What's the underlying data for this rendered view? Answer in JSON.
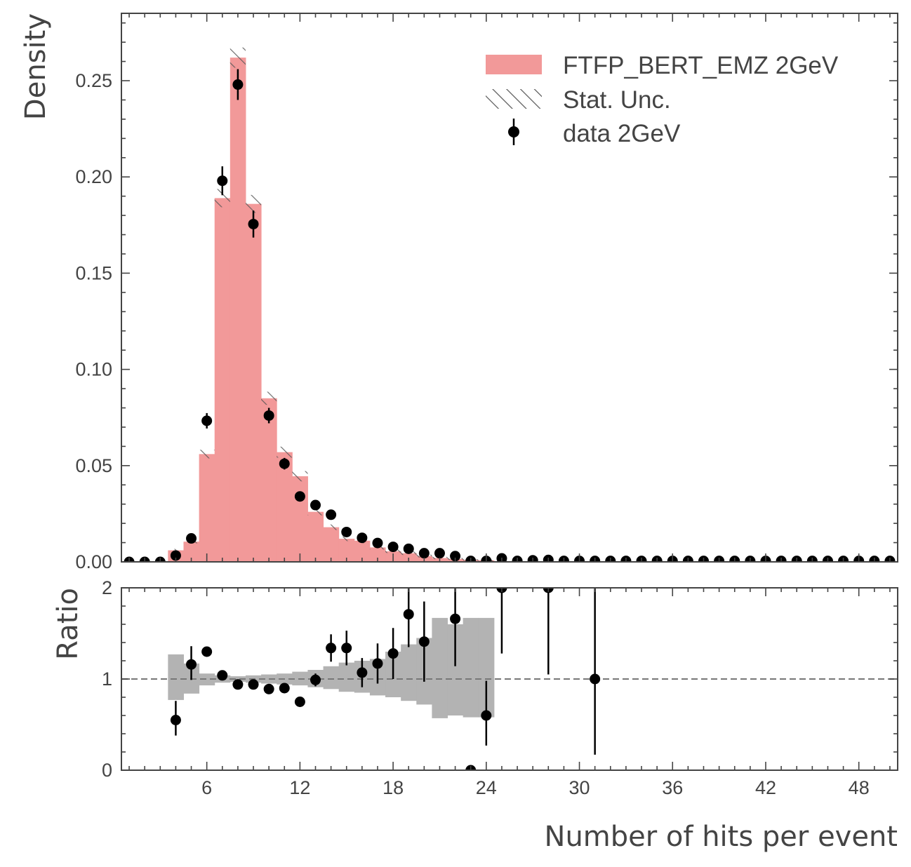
{
  "chart_data": [
    {
      "panel": "main",
      "type": "histogram",
      "ylabel": "Density",
      "xlim": [
        0.5,
        50.5
      ],
      "ylim": [
        0,
        0.285
      ],
      "yticks": [
        "0.00",
        "0.05",
        "0.10",
        "0.15",
        "0.20",
        "0.25"
      ],
      "series": [
        {
          "name": "FTFP_BERT_EMZ 2GeV",
          "kind": "step-filled",
          "color": "#f29999",
          "bin_edges": [
            0.5,
            1.5,
            2.5,
            3.5,
            4.5,
            5.5,
            6.5,
            7.5,
            8.5,
            9.5,
            10.5,
            11.5,
            12.5,
            13.5,
            14.5,
            15.5,
            16.5,
            17.5,
            18.5,
            19.5,
            20.5,
            21.5,
            22.5,
            23.5,
            24.5,
            25.5,
            26.5,
            27.5,
            28.5,
            29.5,
            30.5,
            31.5,
            32.5,
            33.5,
            34.5,
            35.5,
            36.5,
            37.5,
            38.5,
            39.5,
            40.5,
            41.5,
            42.5,
            43.5,
            44.5,
            45.5,
            46.5,
            47.5,
            48.5,
            49.5,
            50.5
          ],
          "values": [
            0,
            0,
            0,
            0.006,
            0.0105,
            0.056,
            0.189,
            0.262,
            0.186,
            0.085,
            0.057,
            0.0445,
            0.026,
            0.018,
            0.012,
            0.011,
            0.0075,
            0.0055,
            0.0045,
            0.003,
            0.002,
            0.0015,
            0.001,
            0.0008,
            0.0004,
            0.0003,
            0.0002,
            0.0002,
            0.0001,
            0.0001,
            0.0001,
            0,
            0,
            0,
            0,
            0,
            0,
            0,
            0,
            0,
            0,
            0,
            0,
            0,
            0,
            0,
            0,
            0,
            0,
            0
          ]
        },
        {
          "name": "Stat. Unc.",
          "kind": "hatched-band",
          "relative_error": [
            0,
            0,
            0,
            0.12,
            0.08,
            0.04,
            0.025,
            0.02,
            0.025,
            0.04,
            0.05,
            0.06,
            0.07,
            0.08,
            0.1,
            0.12,
            0.14,
            0.16,
            0.2,
            0.25,
            0.3,
            0.35,
            0.4,
            0.5,
            0.6,
            0.6,
            0.6,
            0.6,
            0.6,
            0.6,
            0.6,
            0,
            0,
            0,
            0,
            0,
            0,
            0,
            0,
            0,
            0,
            0,
            0,
            0,
            0,
            0,
            0,
            0,
            0,
            0
          ]
        },
        {
          "name": "data 2GeV",
          "kind": "points-errorbars",
          "color": "#000000",
          "x": [
            1,
            2,
            3,
            4,
            5,
            6,
            7,
            8,
            9,
            10,
            11,
            12,
            13,
            14,
            15,
            16,
            17,
            18,
            19,
            20,
            21,
            22,
            23,
            24,
            25,
            26,
            27,
            28,
            29,
            30,
            31,
            32,
            33,
            34,
            35,
            36,
            37,
            38,
            39,
            40,
            41,
            42,
            43,
            44,
            45,
            46,
            47,
            48,
            49,
            50
          ],
          "y": [
            0,
            0,
            0,
            0.0033,
            0.0122,
            0.0733,
            0.198,
            0.248,
            0.1755,
            0.076,
            0.051,
            0.034,
            0.0295,
            0.0245,
            0.0155,
            0.0125,
            0.0098,
            0.0078,
            0.0068,
            0.0045,
            0.0045,
            0.003,
            0.0005,
            0.0005,
            0.0018,
            0.0005,
            0.0008,
            0.001,
            0.0005,
            0.0005,
            0.0005,
            0.0005,
            0.0005,
            0.0005,
            0.0005,
            0.0005,
            0.0005,
            0.0005,
            0.0005,
            0.0005,
            0.0005,
            0.0005,
            0.0005,
            0.0005,
            0.0005,
            0.0005,
            0.0005,
            0.0005,
            0.0005,
            0.0005
          ],
          "yerr": [
            0,
            0,
            0,
            0.001,
            0.0015,
            0.004,
            0.0075,
            0.008,
            0.007,
            0.004,
            0.003,
            0.002,
            0.002,
            0.002,
            0.0015,
            0.001,
            0.001,
            0.001,
            0.001,
            0.0008,
            0.0008,
            0.0007,
            0,
            0,
            0.0005,
            0,
            0,
            0,
            0,
            0,
            0,
            0,
            0,
            0,
            0,
            0,
            0,
            0,
            0,
            0,
            0,
            0,
            0,
            0,
            0,
            0,
            0,
            0,
            0,
            0
          ]
        }
      ],
      "legend": [
        "FTFP_BERT_EMZ 2GeV",
        "Stat. Unc.",
        "data 2GeV"
      ],
      "legend_position": "top-right"
    },
    {
      "panel": "ratio",
      "type": "scatter",
      "ylabel": "Ratio",
      "xlabel": "Number of hits per event",
      "xlim": [
        0.5,
        50.5
      ],
      "ylim": [
        0,
        2
      ],
      "yticks": [
        "0",
        "1",
        "2"
      ],
      "xticks": [
        6,
        12,
        18,
        24,
        30,
        36,
        42,
        48
      ],
      "reference_line": 1,
      "uncertainty_band": {
        "color": "#b3b3b3",
        "bin_edges": [
          3.5,
          4.5,
          5.5,
          6.5,
          7.5,
          8.5,
          9.5,
          10.5,
          11.5,
          12.5,
          13.5,
          14.5,
          15.5,
          16.5,
          17.5,
          18.5,
          19.5,
          20.5,
          21.5,
          22.5,
          23.5,
          24.5
        ],
        "low": [
          0.77,
          0.84,
          0.93,
          0.96,
          0.97,
          0.96,
          0.95,
          0.94,
          0.93,
          0.91,
          0.89,
          0.86,
          0.85,
          0.82,
          0.8,
          0.76,
          0.72,
          0.57,
          0.6,
          0.58,
          0.58
        ],
        "high": [
          1.27,
          1.17,
          1.06,
          1.04,
          1.03,
          1.04,
          1.05,
          1.06,
          1.08,
          1.1,
          1.14,
          1.18,
          1.2,
          1.22,
          1.3,
          1.38,
          1.45,
          1.67,
          1.6,
          1.67,
          1.67
        ]
      },
      "points": {
        "x": [
          4,
          5,
          6,
          7,
          8,
          9,
          10,
          11,
          12,
          13,
          14,
          15,
          16,
          17,
          18,
          19,
          20,
          22,
          23,
          24,
          25,
          28,
          31
        ],
        "y": [
          0.55,
          1.16,
          1.3,
          1.04,
          0.94,
          0.94,
          0.89,
          0.9,
          0.75,
          0.99,
          1.34,
          1.34,
          1.07,
          1.17,
          1.28,
          1.71,
          1.41,
          1.66,
          0.0,
          0.6,
          2.0,
          2.0,
          1.0
        ],
        "err_low": [
          0.17,
          0.17,
          0.04,
          0.02,
          0.02,
          0.02,
          0.02,
          0.03,
          0.04,
          0.07,
          0.15,
          0.19,
          0.16,
          0.22,
          0.28,
          0.36,
          0.44,
          0.52,
          0,
          0.33,
          0.72,
          0.95,
          0.83
        ],
        "err_high": [
          0.21,
          0.2,
          0.05,
          0.02,
          0.02,
          0.02,
          0.02,
          0.03,
          0.04,
          0.07,
          0.15,
          0.19,
          0.16,
          0.22,
          0.28,
          0.36,
          0.44,
          0.52,
          0,
          0.38,
          0,
          0,
          1.0
        ]
      }
    }
  ]
}
